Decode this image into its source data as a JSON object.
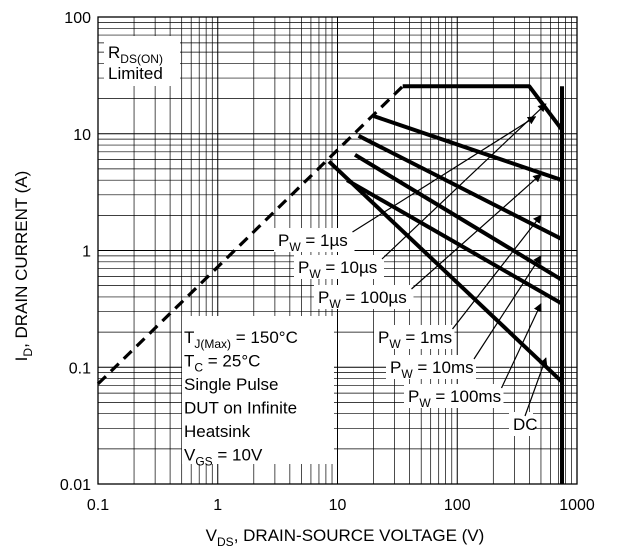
{
  "chart_data": {
    "type": "line",
    "title": "",
    "xlabel": {
      "main": "V",
      "sub": "DS",
      "rest": ", DRAIN-SOURCE VOLTAGE (V)"
    },
    "ylabel": {
      "main": "I",
      "sub": "D",
      "rest": ", DRAIN CURRENT (A)"
    },
    "x_scale": "log",
    "y_scale": "log",
    "xlim": [
      0.1,
      1000
    ],
    "ylim": [
      0.01,
      100
    ],
    "grid": true,
    "x_tick_labels": [
      "0.1",
      "1",
      "10",
      "100",
      "1000"
    ],
    "y_tick_labels": [
      "0.01",
      "0.1",
      "1",
      "10",
      "100"
    ],
    "rds_limit": {
      "label_main": "R",
      "label_sub": "DS(ON)",
      "label_line2": "Limited",
      "points": [
        [
          0.1,
          0.072
        ],
        [
          35,
          25.5
        ]
      ]
    },
    "series": [
      {
        "name": "1µs",
        "points": [
          [
            35,
            25.5
          ],
          [
            400,
            25.5
          ],
          [
            750,
            10.8
          ]
        ],
        "label": {
          "pre": "P",
          "sub": "W",
          "post": " = 1µs"
        }
      },
      {
        "name": "10µs",
        "points": [
          [
            20,
            14.2
          ],
          [
            750,
            4.0
          ]
        ],
        "label": {
          "pre": "P",
          "sub": "W",
          "post": " = 10µs"
        }
      },
      {
        "name": "100µs",
        "points": [
          [
            15,
            9.6
          ],
          [
            750,
            1.25
          ]
        ],
        "label": {
          "pre": "P",
          "sub": "W",
          "post": " = 100µs"
        }
      },
      {
        "name": "1ms",
        "points": [
          [
            14,
            6.6
          ],
          [
            750,
            0.56
          ]
        ],
        "label": {
          "pre": "P",
          "sub": "W",
          "post": " = 1ms"
        }
      },
      {
        "name": "10ms",
        "points": [
          [
            12,
            4.0
          ],
          [
            750,
            0.35
          ]
        ],
        "label": {
          "pre": "P",
          "sub": "W",
          "post": " = 10ms"
        }
      },
      {
        "name": "100ms",
        "points": [
          [
            8.5,
            5.8
          ],
          [
            750,
            0.075
          ]
        ],
        "label": {
          "pre": "P",
          "sub": "W",
          "post": " = 100ms"
        }
      },
      {
        "name": "DC",
        "points": [
          [
            750,
            25.5
          ],
          [
            750,
            0.01
          ]
        ],
        "label": {
          "pre": "DC",
          "sub": "",
          "post": ""
        }
      }
    ],
    "pw_arrow_targets": [
      [
        450,
        14
      ],
      [
        550,
        18
      ],
      [
        500,
        4.5
      ],
      [
        500,
        2.0
      ],
      [
        500,
        0.9
      ],
      [
        500,
        0.35
      ],
      [
        550,
        0.12
      ]
    ],
    "conditions": [
      {
        "pre": "T",
        "sub": "J(Max)",
        "post": " = 150°C"
      },
      {
        "pre": "T",
        "sub": "C",
        "post": " = 25°C"
      },
      {
        "pre": "Single Pulse",
        "sub": "",
        "post": ""
      },
      {
        "pre": "DUT on Infinite",
        "sub": "",
        "post": ""
      },
      {
        "pre": "Heatsink",
        "sub": "",
        "post": ""
      },
      {
        "pre": "V",
        "sub": "GS",
        "post": " = 10V"
      }
    ],
    "colors": {
      "line": "#000000",
      "grid": "#000000",
      "background": "#ffffff"
    }
  }
}
